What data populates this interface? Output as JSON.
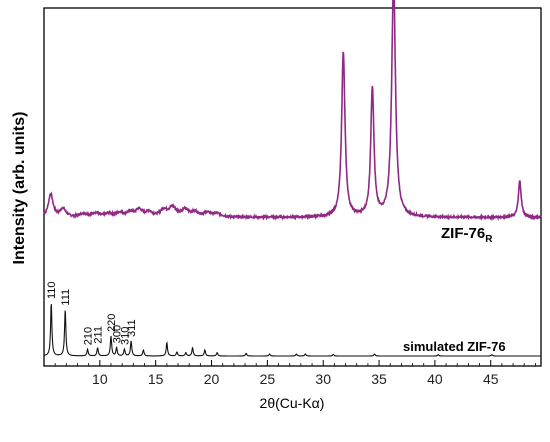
{
  "chart_data": {
    "type": "line",
    "xlabel": "2θ(Cu-Kα)",
    "ylabel": "Intensity (arb. units)",
    "xlim": [
      5,
      49.5
    ],
    "x_ticks": [
      10,
      15,
      20,
      25,
      30,
      35,
      40,
      45
    ],
    "grid": false,
    "y_ticks_shown": false,
    "series": [
      {
        "name": "ZIF-76",
        "name_subscript": "R",
        "color": "#8e2a84",
        "baseline": 0.42,
        "peaks": [
          [
            5.6,
            0.07,
            0.25
          ],
          [
            6.7,
            0.025,
            0.3
          ],
          [
            8.5,
            0.01,
            0.4
          ],
          [
            9.6,
            0.012,
            0.4
          ],
          [
            10.8,
            0.01,
            0.4
          ],
          [
            11.8,
            0.012,
            0.35
          ],
          [
            12.7,
            0.014,
            0.35
          ],
          [
            13.5,
            0.022,
            0.35
          ],
          [
            14.4,
            0.015,
            0.35
          ],
          [
            15.7,
            0.02,
            0.35
          ],
          [
            16.5,
            0.028,
            0.4
          ],
          [
            17.6,
            0.02,
            0.4
          ],
          [
            18.5,
            0.014,
            0.4
          ],
          [
            19.6,
            0.012,
            0.4
          ],
          [
            20.5,
            0.01,
            0.45
          ],
          [
            31.8,
            0.5,
            0.18
          ],
          [
            34.4,
            0.39,
            0.17
          ],
          [
            36.3,
            0.72,
            0.2
          ],
          [
            47.6,
            0.11,
            0.15
          ]
        ]
      },
      {
        "name": "simulated ZIF-76",
        "color": "#111111",
        "baseline": 0.0,
        "peaks": [
          [
            5.65,
            0.16,
            0.07
          ],
          [
            6.9,
            0.14,
            0.07
          ],
          [
            8.9,
            0.02,
            0.07
          ],
          [
            9.8,
            0.025,
            0.07
          ],
          [
            11.0,
            0.06,
            0.07
          ],
          [
            11.5,
            0.025,
            0.07
          ],
          [
            12.2,
            0.02,
            0.07
          ],
          [
            12.8,
            0.045,
            0.07
          ],
          [
            13.9,
            0.018,
            0.07
          ],
          [
            16.0,
            0.04,
            0.07
          ],
          [
            16.9,
            0.012,
            0.07
          ],
          [
            17.7,
            0.01,
            0.07
          ],
          [
            18.3,
            0.025,
            0.07
          ],
          [
            19.4,
            0.018,
            0.07
          ],
          [
            20.5,
            0.01,
            0.07
          ],
          [
            23.1,
            0.008,
            0.07
          ],
          [
            25.2,
            0.006,
            0.07
          ],
          [
            27.6,
            0.006,
            0.07
          ],
          [
            28.4,
            0.006,
            0.07
          ],
          [
            30.9,
            0.005,
            0.07
          ],
          [
            34.6,
            0.006,
            0.07
          ],
          [
            40.3,
            0.004,
            0.07
          ],
          [
            45.1,
            0.004,
            0.07
          ]
        ]
      }
    ],
    "peak_labels": [
      {
        "text": "110",
        "x": 5.65
      },
      {
        "text": "111",
        "x": 6.9
      },
      {
        "text": "210",
        "x": 8.9
      },
      {
        "text": "211",
        "x": 9.8
      },
      {
        "text": "220",
        "x": 11.0
      },
      {
        "text": "300",
        "x": 11.5
      },
      {
        "text": "310",
        "x": 12.2
      },
      {
        "text": "311",
        "x": 12.8
      }
    ]
  }
}
